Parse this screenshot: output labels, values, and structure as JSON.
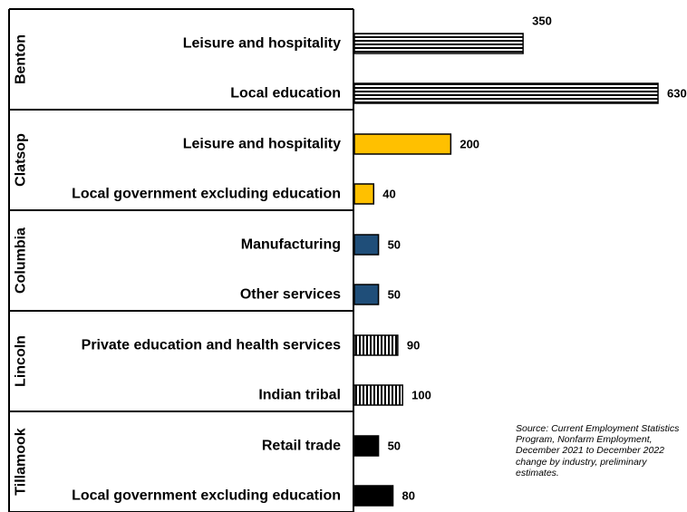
{
  "chart_data": {
    "type": "bar",
    "orientation": "horizontal",
    "groups": [
      {
        "name": "Benton",
        "bars": [
          {
            "label": "Leisure and hospitality",
            "value": 350
          },
          {
            "label": "Local education",
            "value": 630
          }
        ],
        "pattern": "horizontal-stripes",
        "color": "#000000"
      },
      {
        "name": "Clatsop",
        "bars": [
          {
            "label": "Leisure and hospitality",
            "value": 200
          },
          {
            "label": "Local government excluding education",
            "value": 40
          }
        ],
        "pattern": "solid",
        "color": "#FFC000"
      },
      {
        "name": "Columbia",
        "bars": [
          {
            "label": "Manufacturing",
            "value": 50
          },
          {
            "label": "Other services",
            "value": 50
          }
        ],
        "pattern": "solid",
        "color": "#1F4E79"
      },
      {
        "name": "Lincoln",
        "bars": [
          {
            "label": "Private education and health services",
            "value": 90
          },
          {
            "label": "Indian tribal",
            "value": 100
          }
        ],
        "pattern": "vertical-stripes",
        "color": "#000000"
      },
      {
        "name": "Tillamook",
        "bars": [
          {
            "label": "Retail trade",
            "value": 50
          },
          {
            "label": "Local government excluding education",
            "value": 80
          }
        ],
        "pattern": "solid",
        "color": "#000000"
      }
    ],
    "xlim": [
      0,
      630
    ],
    "gridlines": false,
    "data_labels": true
  },
  "source_note": "Source: Current Employment Statistics Program, Nonfarm Employment, December 2021 to December 2022 change by industry, preliminary estimates."
}
